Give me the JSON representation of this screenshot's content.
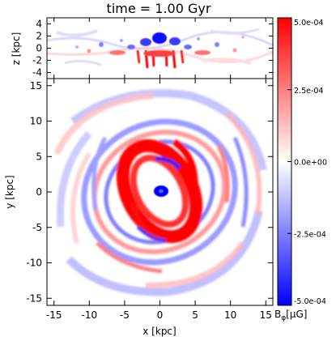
{
  "title": "time = 1.00 Gyr",
  "chart_data": [
    {
      "type": "heatmap",
      "panel": "edge-on slice",
      "xlabel": "",
      "ylabel": "z [kpc]",
      "xlim": [
        -16,
        16
      ],
      "ylim": [
        -5,
        5
      ],
      "xticks": [
        -15,
        -10,
        -5,
        0,
        5,
        10,
        15
      ],
      "yticks": [
        -4,
        -2,
        0,
        2,
        4
      ],
      "ytick_labels": [
        "-4",
        "-2",
        "0",
        "2",
        "4"
      ],
      "features": [
        "blue lobes above midplane near center",
        "red filaments just below midplane near center"
      ]
    },
    {
      "type": "heatmap",
      "panel": "face-on slice",
      "xlabel": "x [kpc]",
      "ylabel": "y [kpc]",
      "xlim": [
        -16,
        16
      ],
      "ylim": [
        -16,
        16
      ],
      "xticks": [
        -15,
        -10,
        -5,
        0,
        5,
        10,
        15
      ],
      "xtick_labels": [
        "-15",
        "-10",
        "-5",
        "0",
        "5",
        "10",
        "15"
      ],
      "yticks": [
        -15,
        -10,
        -5,
        0,
        5,
        10,
        15
      ],
      "ytick_labels": [
        "-15",
        "-10",
        "-5",
        "0",
        "5",
        "10",
        "15"
      ],
      "features": [
        "strong red elliptical ring within ~5 kpc",
        "blue core at center",
        "alternating red/blue spiral arms out to ~15 kpc"
      ]
    }
  ],
  "colorbar": {
    "label": "B",
    "label_sub": "φ",
    "label_unit": "[μG]",
    "vmin": -0.0005,
    "vmax": 0.0005,
    "tick_labels": [
      "5.0e-04",
      "2.5e-04",
      "0.0e+00",
      "-2.5e-04",
      "-5.0e-04"
    ],
    "tick_values": [
      0.0005,
      0.00025,
      0.0,
      -0.00025,
      -0.0005
    ],
    "colormap": [
      "#0000ff",
      "#ffffff",
      "#ff0000"
    ]
  }
}
